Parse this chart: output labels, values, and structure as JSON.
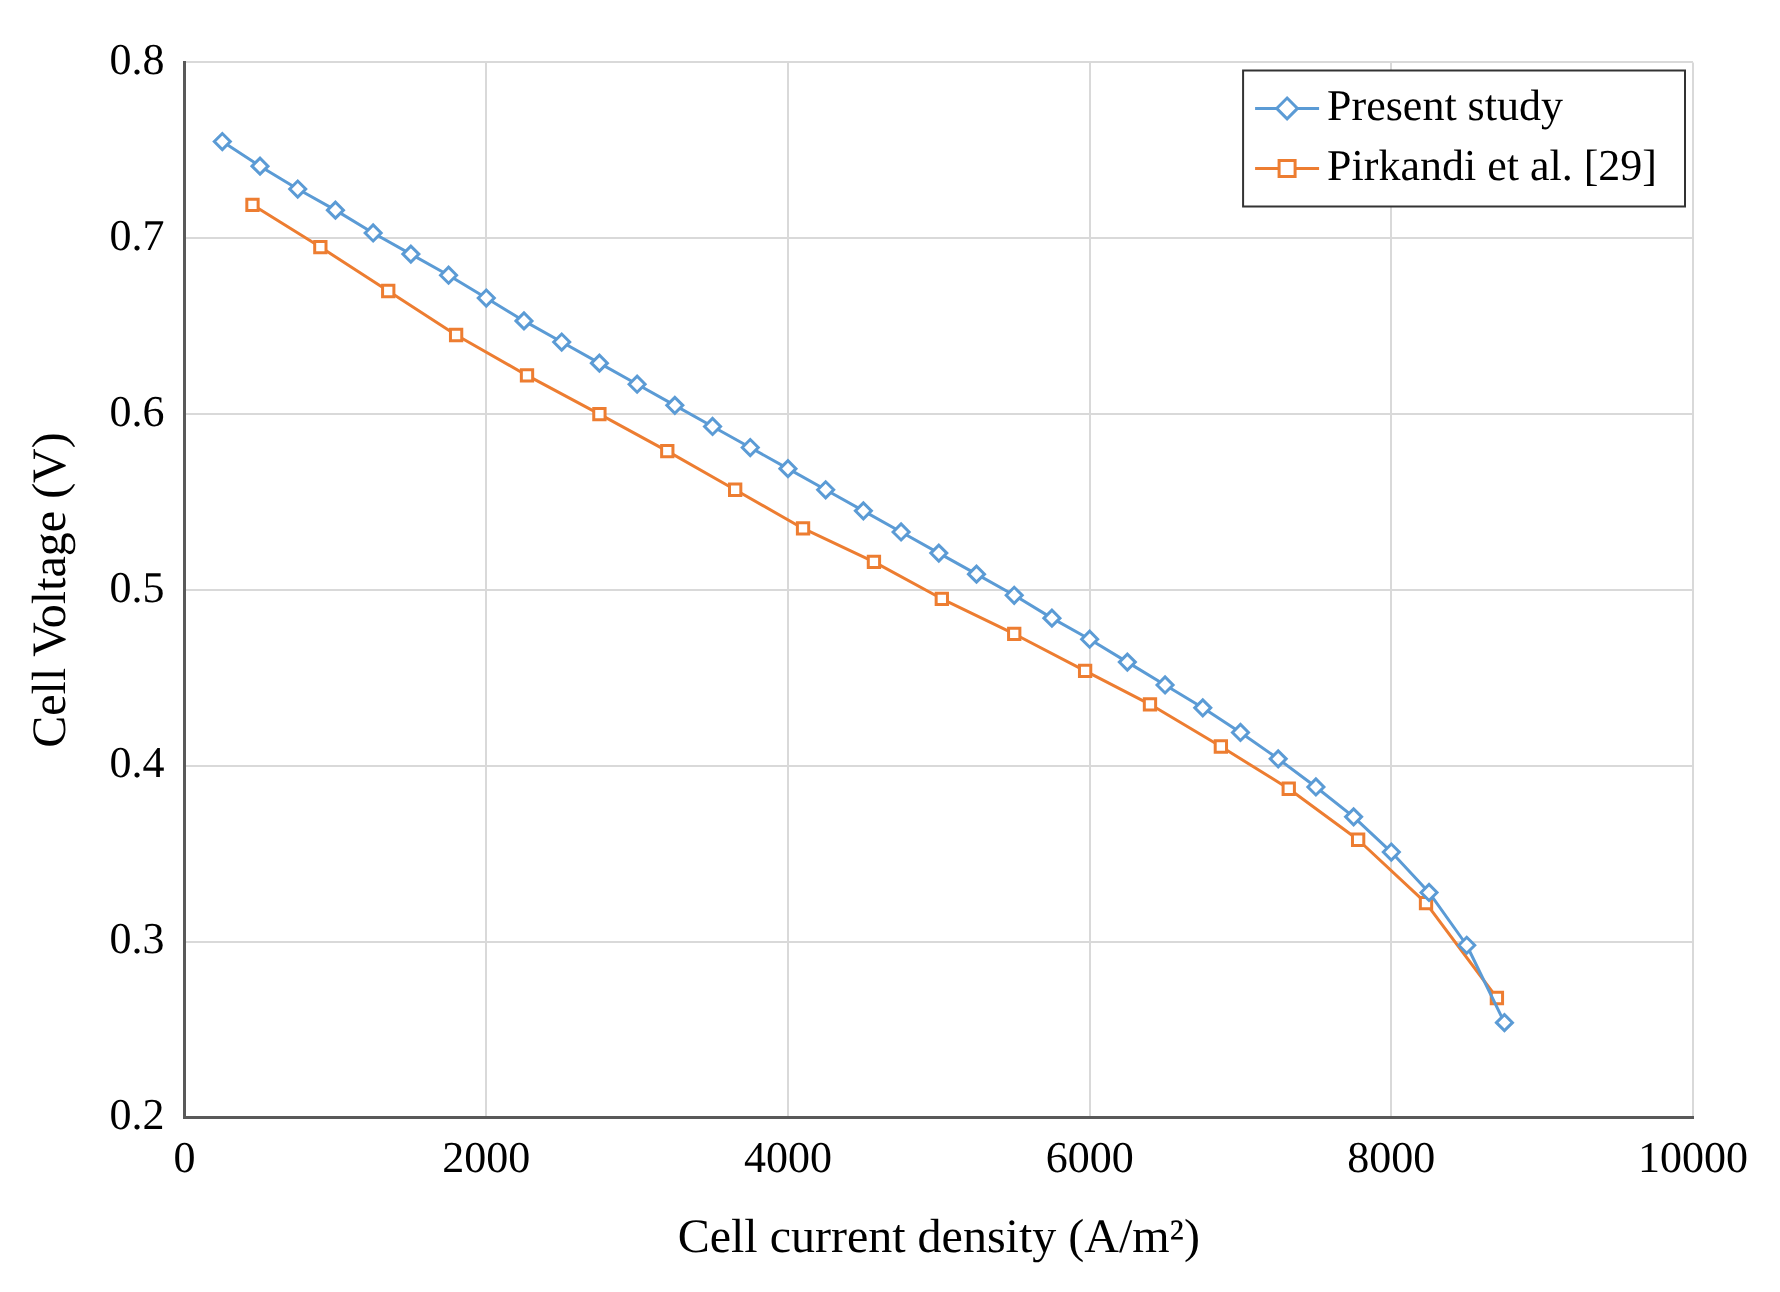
{
  "chart_data": {
    "type": "line",
    "xlabel": "Cell current density (A/m²)",
    "ylabel": "Cell Voltage (V)",
    "xlim": [
      0,
      10000
    ],
    "xticks": [
      0,
      2000,
      4000,
      6000,
      8000,
      10000
    ],
    "ylim": [
      0.2,
      0.8
    ],
    "yticks": [
      0.2,
      0.3,
      0.4,
      0.5,
      0.6,
      0.7,
      0.8
    ],
    "grid": true,
    "legend": "top right",
    "line_style": "solid",
    "series": [
      {
        "name": "Present study",
        "color": "#5b9bd5",
        "marker": "diamond",
        "x": [
          250,
          500,
          750,
          1000,
          1250,
          1500,
          1750,
          2000,
          2250,
          2500,
          2750,
          3000,
          3250,
          3500,
          3750,
          4000,
          4250,
          4500,
          4750,
          5000,
          5250,
          5500,
          5750,
          6000,
          6250,
          6500,
          6750,
          7000,
          7250,
          7500,
          7750,
          8000,
          8250,
          8500,
          8750
        ],
        "values": [
          0.755,
          0.741,
          0.728,
          0.716,
          0.703,
          0.691,
          0.679,
          0.666,
          0.653,
          0.641,
          0.629,
          0.617,
          0.605,
          0.593,
          0.581,
          0.569,
          0.557,
          0.545,
          0.533,
          0.521,
          0.509,
          0.497,
          0.484,
          0.472,
          0.459,
          0.446,
          0.433,
          0.419,
          0.404,
          0.388,
          0.371,
          0.351,
          0.328,
          0.298,
          0.254
        ]
      },
      {
        "name": "Pirkandi et al. [29]",
        "color": "#ed7d31",
        "marker": "square",
        "x": [
          450,
          900,
          1350,
          1800,
          2270,
          2750,
          3200,
          3650,
          4100,
          4570,
          5020,
          5500,
          5970,
          6400,
          6870,
          7320,
          7780,
          8230,
          8700
        ],
        "values": [
          0.719,
          0.695,
          0.67,
          0.645,
          0.622,
          0.6,
          0.579,
          0.557,
          0.535,
          0.516,
          0.495,
          0.475,
          0.454,
          0.435,
          0.411,
          0.387,
          0.358,
          0.322,
          0.268
        ]
      }
    ]
  }
}
